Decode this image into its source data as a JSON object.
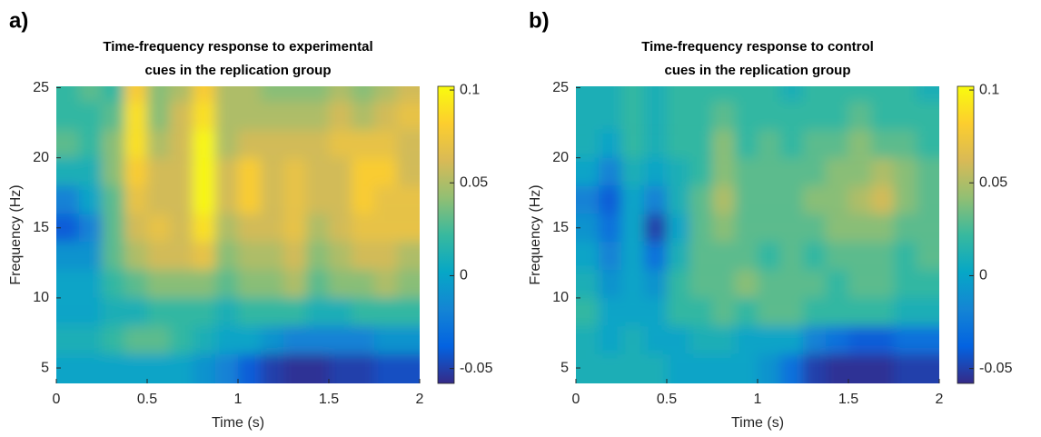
{
  "chart_data": [
    {
      "type": "heatmap",
      "panel_label": "a)",
      "title": [
        "Time-frequency response to experimental",
        "cues in the replication group"
      ],
      "xlabel": "Time (s)",
      "ylabel": "Frequency (Hz)",
      "colormap": "parula",
      "x": [
        0.0625,
        0.1875,
        0.3125,
        0.4375,
        0.5625,
        0.6875,
        0.8125,
        0.9375,
        1.0625,
        1.1875,
        1.3125,
        1.4375,
        1.5625,
        1.6875,
        1.8125,
        1.9375
      ],
      "y": [
        5,
        7,
        9,
        11,
        13,
        15,
        17,
        19,
        21,
        23,
        25
      ],
      "z": [
        [
          0.0,
          0.0,
          0.0,
          0.0,
          0.0,
          0.0,
          -0.01,
          -0.02,
          -0.04,
          -0.05,
          -0.055,
          -0.055,
          -0.05,
          -0.05,
          -0.045,
          -0.045
        ],
        [
          0.01,
          0.01,
          0.02,
          0.03,
          0.03,
          0.02,
          0.01,
          0.0,
          0.0,
          -0.01,
          -0.02,
          -0.02,
          -0.02,
          -0.02,
          -0.01,
          -0.01
        ],
        [
          0.0,
          0.0,
          0.01,
          0.01,
          0.02,
          0.02,
          0.02,
          0.01,
          0.02,
          0.02,
          0.02,
          0.01,
          0.01,
          0.02,
          0.02,
          0.02
        ],
        [
          0.0,
          0.0,
          0.02,
          0.03,
          0.04,
          0.04,
          0.04,
          0.03,
          0.04,
          0.04,
          0.05,
          0.03,
          0.04,
          0.04,
          0.05,
          0.04
        ],
        [
          -0.01,
          -0.01,
          0.03,
          0.05,
          0.06,
          0.06,
          0.07,
          0.04,
          0.05,
          0.05,
          0.06,
          0.04,
          0.05,
          0.06,
          0.06,
          0.05
        ],
        [
          -0.04,
          -0.02,
          0.03,
          0.06,
          0.07,
          0.06,
          0.09,
          0.05,
          0.06,
          0.06,
          0.07,
          0.05,
          0.06,
          0.07,
          0.07,
          0.07
        ],
        [
          -0.02,
          0.0,
          0.03,
          0.07,
          0.06,
          0.06,
          0.1,
          0.06,
          0.08,
          0.06,
          0.07,
          0.06,
          0.06,
          0.08,
          0.07,
          0.07
        ],
        [
          0.01,
          0.01,
          0.04,
          0.08,
          0.06,
          0.06,
          0.1,
          0.06,
          0.08,
          0.06,
          0.07,
          0.06,
          0.06,
          0.08,
          0.08,
          0.06
        ],
        [
          0.03,
          0.02,
          0.04,
          0.09,
          0.05,
          0.06,
          0.1,
          0.05,
          0.06,
          0.06,
          0.06,
          0.06,
          0.07,
          0.07,
          0.07,
          0.06
        ],
        [
          0.02,
          0.02,
          0.03,
          0.09,
          0.04,
          0.06,
          0.09,
          0.05,
          0.05,
          0.05,
          0.05,
          0.05,
          0.06,
          0.05,
          0.06,
          0.07
        ],
        [
          0.02,
          0.03,
          0.02,
          0.08,
          0.04,
          0.05,
          0.08,
          0.05,
          0.05,
          0.04,
          0.04,
          0.04,
          0.05,
          0.04,
          0.05,
          0.06
        ]
      ],
      "xlim": [
        0,
        2
      ],
      "ylim": [
        3.9,
        25.1
      ],
      "xticks": [
        0,
        0.5,
        1,
        1.5,
        2
      ],
      "yticks": [
        5,
        10,
        15,
        20,
        25
      ],
      "clim": [
        -0.058,
        0.102
      ],
      "cticks": [
        -0.05,
        0,
        0.05,
        0.1
      ]
    },
    {
      "type": "heatmap",
      "panel_label": "b)",
      "title": [
        "Time-frequency response to control",
        "cues in the replication group"
      ],
      "xlabel": "Time (s)",
      "ylabel": "Frequency (Hz)",
      "colormap": "parula",
      "x": [
        0.0625,
        0.1875,
        0.3125,
        0.4375,
        0.5625,
        0.6875,
        0.8125,
        0.9375,
        1.0625,
        1.1875,
        1.3125,
        1.4375,
        1.5625,
        1.6875,
        1.8125,
        1.9375
      ],
      "y": [
        5,
        7,
        9,
        11,
        13,
        15,
        17,
        19,
        21,
        23,
        25
      ],
      "z": [
        [
          0.01,
          0.01,
          0.01,
          0.01,
          0.0,
          0.0,
          0.0,
          0.0,
          -0.01,
          -0.03,
          -0.05,
          -0.055,
          -0.055,
          -0.055,
          -0.05,
          -0.05
        ],
        [
          0.01,
          0.0,
          0.01,
          0.0,
          0.0,
          0.01,
          0.01,
          0.0,
          0.0,
          0.0,
          -0.02,
          -0.03,
          -0.04,
          -0.04,
          -0.03,
          -0.03
        ],
        [
          0.02,
          0.0,
          0.0,
          0.0,
          0.02,
          0.02,
          0.03,
          0.02,
          0.03,
          0.03,
          0.02,
          0.02,
          0.02,
          0.02,
          0.01,
          0.01
        ],
        [
          0.01,
          -0.01,
          0.0,
          -0.01,
          0.02,
          0.03,
          0.03,
          0.04,
          0.03,
          0.03,
          0.03,
          0.02,
          0.03,
          0.03,
          0.02,
          0.02
        ],
        [
          0.0,
          -0.02,
          0.0,
          -0.03,
          0.01,
          0.03,
          0.03,
          0.03,
          0.02,
          0.03,
          0.02,
          0.03,
          0.03,
          0.03,
          0.02,
          0.03
        ],
        [
          -0.01,
          -0.03,
          0.0,
          -0.05,
          0.0,
          0.03,
          0.04,
          0.03,
          0.03,
          0.03,
          0.03,
          0.04,
          0.04,
          0.04,
          0.03,
          0.03
        ],
        [
          -0.02,
          -0.04,
          0.0,
          -0.02,
          0.01,
          0.03,
          0.05,
          0.03,
          0.03,
          0.03,
          0.04,
          0.04,
          0.05,
          0.06,
          0.04,
          0.03
        ],
        [
          0.0,
          -0.02,
          0.01,
          0.0,
          0.01,
          0.02,
          0.04,
          0.03,
          0.03,
          0.03,
          0.03,
          0.04,
          0.04,
          0.05,
          0.04,
          0.03
        ],
        [
          0.01,
          0.0,
          0.02,
          0.01,
          0.02,
          0.02,
          0.04,
          0.02,
          0.03,
          0.02,
          0.03,
          0.03,
          0.04,
          0.03,
          0.03,
          0.02
        ],
        [
          0.01,
          0.01,
          0.02,
          0.01,
          0.02,
          0.02,
          0.03,
          0.02,
          0.02,
          0.02,
          0.02,
          0.02,
          0.03,
          0.02,
          0.02,
          0.02
        ],
        [
          0.01,
          0.01,
          0.02,
          0.01,
          0.02,
          0.02,
          0.02,
          0.02,
          0.02,
          0.01,
          0.02,
          0.02,
          0.02,
          0.02,
          0.02,
          0.01
        ]
      ],
      "xlim": [
        0,
        2
      ],
      "ylim": [
        3.9,
        25.1
      ],
      "xticks": [
        0,
        0.5,
        1,
        1.5,
        2
      ],
      "yticks": [
        5,
        10,
        15,
        20,
        25
      ],
      "clim": [
        -0.058,
        0.102
      ],
      "cticks": [
        -0.05,
        0,
        0.05,
        0.1
      ]
    }
  ]
}
